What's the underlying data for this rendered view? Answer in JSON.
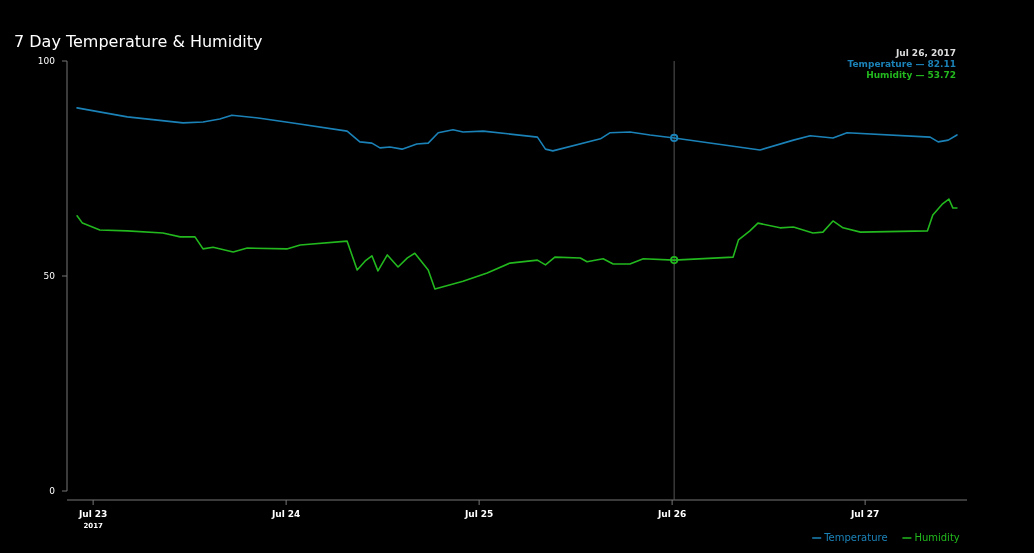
{
  "chart_data": {
    "type": "line",
    "title": "7 Day Temperature & Humidity",
    "xlim": [
      "2017-07-22T20:45",
      "2017-07-27T12:40"
    ],
    "xticks": [
      {
        "value": "2017-07-23",
        "label": "Jul 23$_{2017}$"
      },
      {
        "value": "2017-07-24",
        "label": "Jul 24"
      },
      {
        "value": "2017-07-25",
        "label": "Jul 25"
      },
      {
        "value": "2017-07-26",
        "label": "Jul 26"
      },
      {
        "value": "2017-07-27",
        "label": "Jul 27"
      }
    ],
    "ylim": [
      0,
      100
    ],
    "yticks": [
      0,
      50,
      100
    ],
    "grid": false,
    "legend": "bottom right",
    "marker": "none",
    "line_style": "solid",
    "series": [
      {
        "name": "Temperature",
        "color": "#1b82b8",
        "x": [
          "2017-07-22T22:00",
          "2017-07-23T04:15",
          "2017-07-23T11:10",
          "2017-07-23T13:40",
          "2017-07-23T15:45",
          "2017-07-23T17:15",
          "2017-07-23T20:45",
          "2017-07-24T00:50",
          "2017-07-24T07:35",
          "2017-07-24T09:10",
          "2017-07-24T10:40",
          "2017-07-24T11:40",
          "2017-07-24T12:55",
          "2017-07-24T14:25",
          "2017-07-24T16:15",
          "2017-07-24T17:40",
          "2017-07-24T18:55",
          "2017-07-24T20:45",
          "2017-07-24T22:00",
          "2017-07-25T00:30",
          "2017-07-25T07:15",
          "2017-07-25T08:15",
          "2017-07-25T09:10",
          "2017-07-25T15:05",
          "2017-07-25T16:15",
          "2017-07-25T18:45",
          "2017-07-25T21:15",
          "2017-07-26T00:15",
          "2017-07-26T10:55",
          "2017-07-26T15:05",
          "2017-07-26T17:10",
          "2017-07-26T20:00",
          "2017-07-26T21:45",
          "2017-07-27T08:05",
          "2017-07-27T09:05",
          "2017-07-27T10:20",
          "2017-07-27T11:25"
        ],
        "values": [
          89.1,
          87.0,
          85.6,
          85.8,
          86.5,
          87.4,
          86.7,
          85.6,
          83.7,
          81.2,
          80.9,
          79.8,
          80.0,
          79.5,
          80.7,
          80.9,
          83.3,
          84.0,
          83.5,
          83.7,
          82.3,
          79.5,
          79.1,
          81.9,
          83.3,
          83.5,
          82.8,
          82.1,
          79.3,
          81.6,
          82.6,
          82.1,
          83.3,
          82.3,
          81.2,
          81.6,
          82.8
        ]
      },
      {
        "name": "Humidity",
        "color": "#22b81e",
        "x": [
          "2017-07-22T22:00",
          "2017-07-22T22:40",
          "2017-07-23T00:50",
          "2017-07-23T04:15",
          "2017-07-23T08:40",
          "2017-07-23T10:50",
          "2017-07-23T12:40",
          "2017-07-23T13:40",
          "2017-07-23T14:55",
          "2017-07-23T17:25",
          "2017-07-23T19:10",
          "2017-07-24T00:05",
          "2017-07-24T01:45",
          "2017-07-24T07:35",
          "2017-07-24T08:50",
          "2017-07-24T09:50",
          "2017-07-24T10:40",
          "2017-07-24T11:25",
          "2017-07-24T12:35",
          "2017-07-24T13:55",
          "2017-07-24T15:05",
          "2017-07-24T16:00",
          "2017-07-24T17:40",
          "2017-07-24T18:30",
          "2017-07-24T22:00",
          "2017-07-25T01:00",
          "2017-07-25T03:50",
          "2017-07-25T07:15",
          "2017-07-25T08:15",
          "2017-07-25T09:25",
          "2017-07-25T12:35",
          "2017-07-25T13:25",
          "2017-07-25T15:25",
          "2017-07-25T16:40",
          "2017-07-25T18:45",
          "2017-07-25T20:25",
          "2017-07-26T00:15",
          "2017-07-26T07:35",
          "2017-07-26T08:15",
          "2017-07-26T09:40",
          "2017-07-26T10:40",
          "2017-07-26T13:25",
          "2017-07-26T15:05",
          "2017-07-26T17:30",
          "2017-07-26T18:45",
          "2017-07-26T20:00",
          "2017-07-26T21:15",
          "2017-07-26T23:25",
          "2017-07-27T07:45",
          "2017-07-27T08:25",
          "2017-07-27T09:35",
          "2017-07-27T10:25",
          "2017-07-27T10:55",
          "2017-07-27T11:25"
        ],
        "values": [
          64.0,
          62.3,
          60.7,
          60.5,
          60.0,
          59.1,
          59.1,
          56.3,
          56.7,
          55.6,
          56.5,
          56.3,
          57.2,
          58.1,
          51.4,
          53.5,
          54.7,
          51.2,
          54.9,
          52.1,
          54.2,
          55.3,
          51.4,
          47.0,
          48.8,
          50.7,
          53.0,
          53.7,
          52.6,
          54.4,
          54.2,
          53.3,
          54.0,
          52.8,
          52.8,
          54.0,
          53.7,
          54.4,
          58.4,
          60.5,
          62.3,
          61.2,
          61.4,
          60.0,
          60.2,
          62.8,
          61.2,
          60.2,
          60.5,
          64.2,
          66.7,
          67.9,
          65.8,
          65.8
        ]
      }
    ],
    "ref_lines": [
      {
        "axis": "x",
        "value": "2017-07-26T00:15",
        "color": "#555555"
      }
    ],
    "annotations": [
      "Jul 26, 2017",
      "Temperature — 82.11",
      "Humidity — 53.72"
    ]
  }
}
